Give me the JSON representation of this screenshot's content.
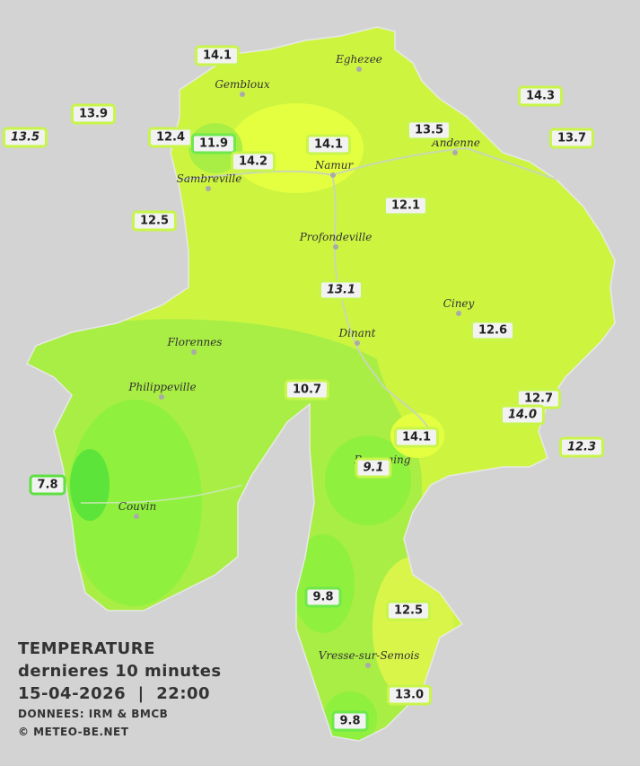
{
  "map": {
    "cities": [
      "Eghezee",
      "Gembloux",
      "Andenne",
      "Namur",
      "Sambreville",
      "Profondeville",
      "Ciney",
      "Dinant",
      "Florennes",
      "Philippeville",
      "Beauraing",
      "Couvin",
      "Vresse-sur-Semois"
    ],
    "stations": [
      {
        "label": "14.1"
      },
      {
        "label": "13.9"
      },
      {
        "label": "13.5",
        "italic": true
      },
      {
        "label": "12.4"
      },
      {
        "label": "11.9",
        "color": "#6ee84a"
      },
      {
        "label": "14.2"
      },
      {
        "label": "14.1"
      },
      {
        "label": "13.5"
      },
      {
        "label": "14.3"
      },
      {
        "label": "13.7"
      },
      {
        "label": "12.5"
      },
      {
        "label": "12.1"
      },
      {
        "label": "13.1",
        "italic": true
      },
      {
        "label": "12.6"
      },
      {
        "label": "10.7"
      },
      {
        "label": "12.7"
      },
      {
        "label": "14.0",
        "italic": true
      },
      {
        "label": "14.1"
      },
      {
        "label": "12.3",
        "italic": true
      },
      {
        "label": "9.1",
        "italic": true
      },
      {
        "label": "7.8",
        "color": "#5ee043"
      },
      {
        "label": "9.8",
        "color": "#6ee84a"
      },
      {
        "label": "12.5"
      },
      {
        "label": "13.0"
      },
      {
        "label": "9.8",
        "color": "#6ee84a"
      }
    ]
  },
  "legend": {
    "title": "TEMPERATURE",
    "subtitle": "dernieres 10 minutes",
    "datetime": "15-04-2026  |  22:00",
    "source": "DONNEES: IRM & BMCB",
    "copyright": "© METEO-BE.NET"
  }
}
